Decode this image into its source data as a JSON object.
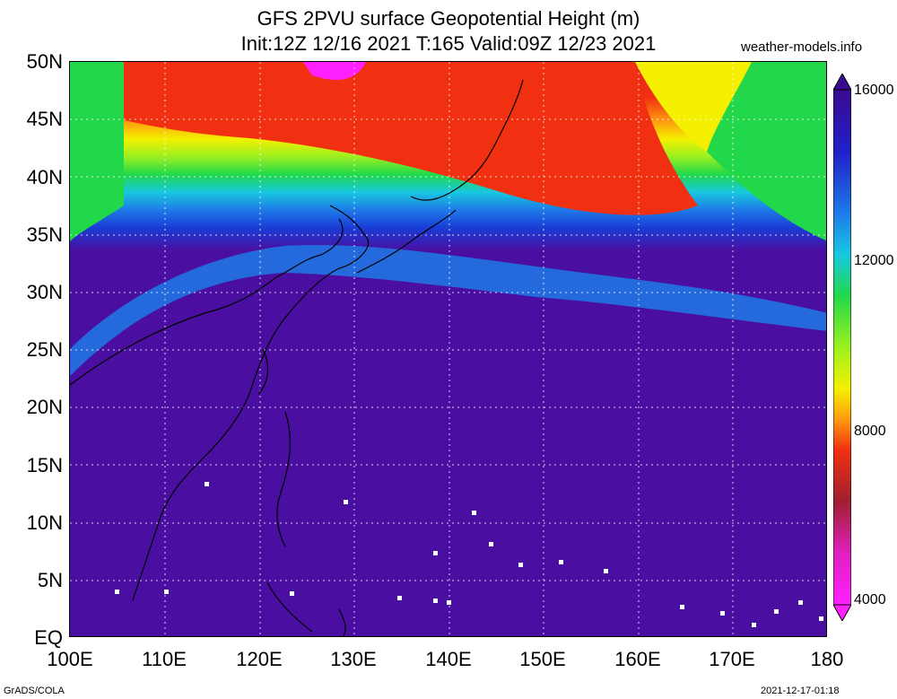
{
  "title_line1": "GFS 2PVU surface Geopotential Height (m)",
  "title_line2": "Init:12Z 12/16 2021 T:165 Valid:09Z 12/23 2021",
  "credit": "weather-models.info",
  "lat_labels": [
    "50N",
    "45N",
    "40N",
    "35N",
    "30N",
    "25N",
    "20N",
    "15N",
    "10N",
    "5N",
    "EQ"
  ],
  "lon_labels": [
    "100E",
    "110E",
    "120E",
    "130E",
    "140E",
    "150E",
    "160E",
    "170E",
    "180"
  ],
  "colorbar_labels": [
    "16000",
    "12000",
    "8000",
    "4000"
  ],
  "footer_left": "GrADS/COLA",
  "footer_right": "2021-12-17-01:18",
  "colors": {
    "deep": "#4a0fa0",
    "blue": "#1a3cd6",
    "cyan": "#18c8e0",
    "green": "#22d84a",
    "yellow": "#f4f000",
    "orange": "#ff9a10",
    "red": "#f03010",
    "magenta": "#ff20ff"
  }
}
